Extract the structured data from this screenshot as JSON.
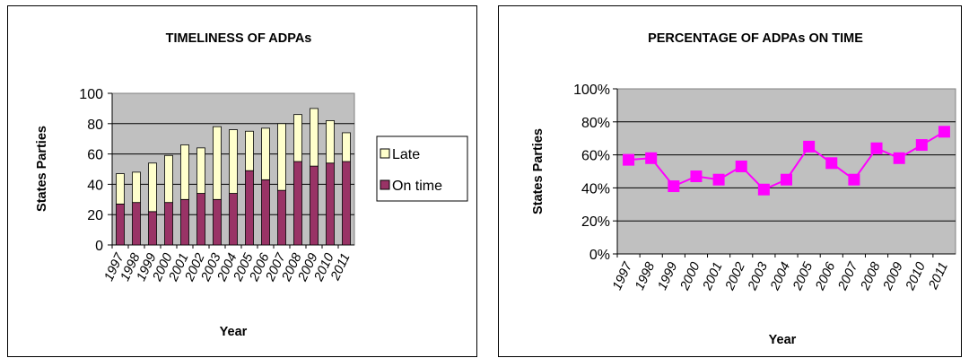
{
  "chart_data": [
    {
      "type": "bar",
      "stacked": true,
      "title": "TIMELINESS OF ADPAs",
      "xlabel": "Year",
      "ylabel": "States Parties",
      "ylim": [
        0,
        100
      ],
      "yticks": [
        "0",
        "20",
        "40",
        "60",
        "80",
        "100"
      ],
      "categories": [
        "1997",
        "1998",
        "1999",
        "2000",
        "2001",
        "2002",
        "2003",
        "2004",
        "2005",
        "2006",
        "2007",
        "2008",
        "2009",
        "2010",
        "2011"
      ],
      "series": [
        {
          "name": "On time",
          "color": "#993366",
          "values": [
            27,
            28,
            22,
            28,
            30,
            34,
            30,
            34,
            49,
            43,
            36,
            55,
            52,
            54,
            55
          ]
        },
        {
          "name": "Late",
          "color": "#FFFFCC",
          "values": [
            20,
            20,
            32,
            31,
            36,
            30,
            48,
            42,
            26,
            34,
            44,
            31,
            38,
            28,
            19
          ]
        }
      ],
      "legend": "right",
      "grid": true,
      "plot_background": "#C0C0C0"
    },
    {
      "type": "line",
      "title": "PERCENTAGE OF ADPAs ON TIME",
      "xlabel": "Year",
      "ylabel": "States Parties",
      "ylim": [
        0,
        100
      ],
      "yticks": [
        "0%",
        "20%",
        "40%",
        "60%",
        "80%",
        "100%"
      ],
      "categories": [
        "1997",
        "1998",
        "1999",
        "2000",
        "2001",
        "2002",
        "2003",
        "2004",
        "2005",
        "2006",
        "2007",
        "2008",
        "2009",
        "2010",
        "2011"
      ],
      "series": [
        {
          "color": "#FF00FF",
          "values": [
            57,
            58,
            41,
            47,
            45,
            53,
            39,
            45,
            65,
            55,
            45,
            64,
            58,
            66,
            74
          ]
        }
      ],
      "grid": true,
      "plot_background": "#C0C0C0"
    }
  ]
}
